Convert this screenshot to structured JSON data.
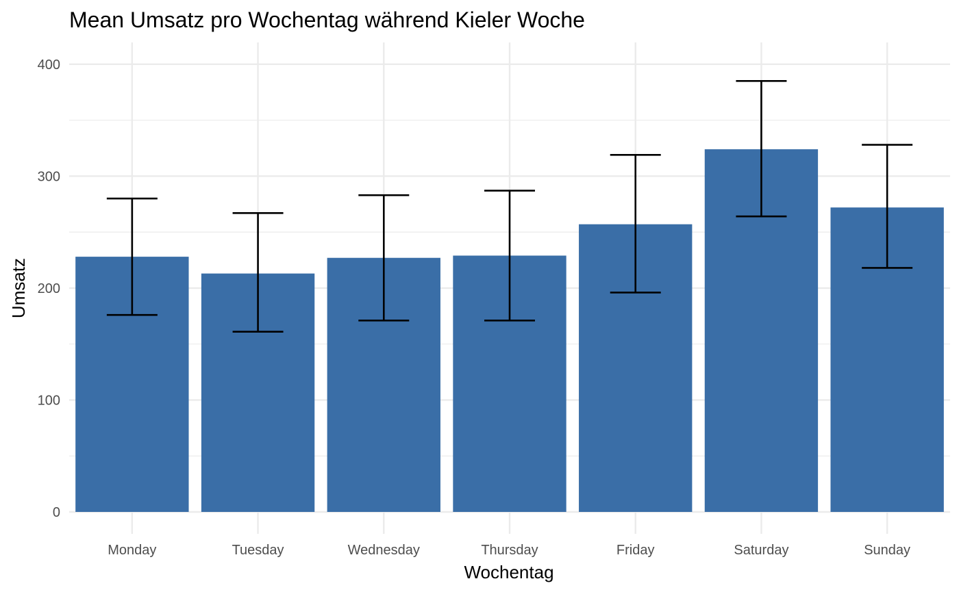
{
  "chart_data": {
    "type": "bar",
    "title": "Mean Umsatz pro Wochentag während Kieler Woche",
    "xlabel": "Wochentag",
    "ylabel": "Umsatz",
    "categories": [
      "Monday",
      "Tuesday",
      "Wednesday",
      "Thursday",
      "Friday",
      "Saturday",
      "Sunday"
    ],
    "values": [
      228,
      213,
      227,
      229,
      257,
      324,
      272
    ],
    "error_bars": {
      "lower": [
        176,
        161,
        171,
        171,
        196,
        264,
        218
      ],
      "upper": [
        280,
        267,
        283,
        287,
        319,
        385,
        328
      ]
    },
    "ylim": [
      0,
      420
    ],
    "yticks": [
      0,
      100,
      200,
      300,
      400
    ],
    "grid": true,
    "bar_color": "#3A6EA7",
    "error_bar_color": "#000000",
    "grid_color": "#EBEBEB"
  }
}
